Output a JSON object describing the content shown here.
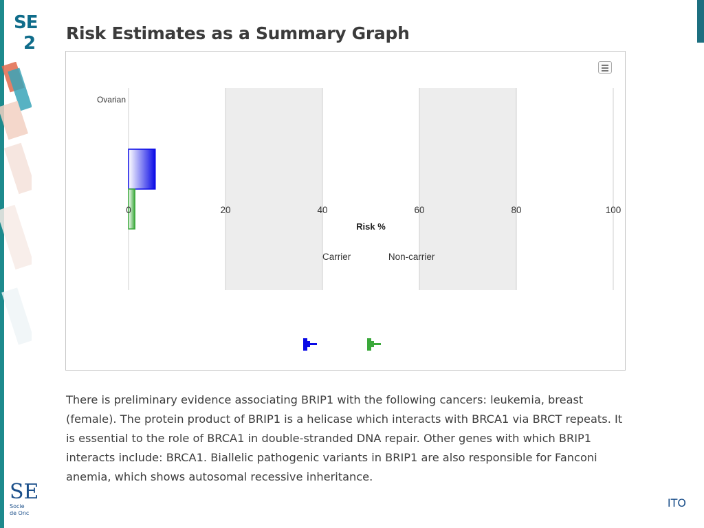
{
  "slide": {
    "title": "Risk Estimates as a Summary Graph",
    "description": "There is preliminary evidence associating BRIP1 with the following cancers: leukemia, breast (female). The protein product of BRIP1 is a helicase which interacts with BRCA1 via BRCT repeats. It is essential to the role of BRCA1 in double-stranded DNA repair. Other genes with which BRIP1 interacts include: BRCA1. Biallelic pathogenic variants in BRIP1 are also responsible for Fanconi anemia, which shows autosomal recessive inheritance.",
    "top_logo_line1": "SE",
    "top_logo_line2": "2",
    "bottom_logo_main": "SE",
    "bottom_logo_line1": "Socie",
    "bottom_logo_line2": "de Onc",
    "footer_mark": "ITO"
  },
  "colors": {
    "carrier": "#0a0ae6",
    "noncarrier": "#3aa83a",
    "band": "#ededed",
    "teal": "#1d8a8d"
  },
  "icons": {
    "menu": "hamburger-menu-icon",
    "legend_carrier": "carrier-legend-marker",
    "legend_noncarrier": "noncarrier-legend-marker"
  },
  "chart_data": {
    "type": "bar",
    "orientation": "horizontal",
    "categories": [
      "Ovarian"
    ],
    "series": [
      {
        "name": "Carrier",
        "values": [
          5.5
        ]
      },
      {
        "name": "Non-carrier",
        "values": [
          1.3
        ]
      }
    ],
    "xlabel": "Risk %",
    "xlim": [
      0,
      100
    ],
    "xticks": [
      "0",
      "20",
      "40",
      "60",
      "80",
      "100"
    ],
    "alternating_bands": true,
    "legend": [
      "Carrier",
      "Non-carrier"
    ],
    "legend_position": "center"
  }
}
